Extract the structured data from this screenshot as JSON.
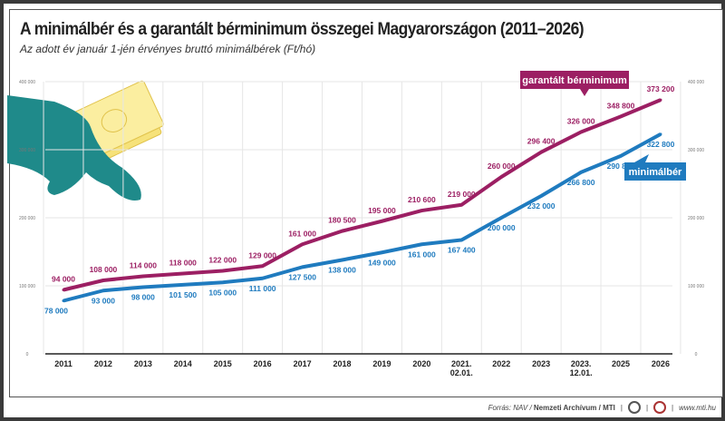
{
  "chart_data": {
    "type": "line",
    "title": "A minimálbér és a garantált bérminimum összegei Magyarországon (2011–2026)",
    "subtitle": "Az adott év január 1-jén érvényes bruttó minimálbérek (Ft/hó)",
    "categories": [
      "2011",
      "2012",
      "2013",
      "2014",
      "2015",
      "2016",
      "2017",
      "2018",
      "2019",
      "2020",
      "2021.\n02.01.",
      "2022",
      "2023",
      "2023.\n12.01.",
      "2025",
      "2026"
    ],
    "ylim": [
      0,
      400000
    ],
    "yticks": [
      "0",
      "100 000",
      "200 000",
      "300 000",
      "400 000"
    ],
    "grid": true,
    "series": [
      {
        "name": "garantált bérminimum",
        "color": "#9c1f63",
        "values": [
          94000,
          108000,
          114000,
          118000,
          122000,
          129000,
          161000,
          180500,
          195000,
          210600,
          219000,
          260000,
          296400,
          326000,
          348800,
          373200
        ],
        "labels": [
          "94 000",
          "108 000",
          "114 000",
          "118 000",
          "122 000",
          "129 000",
          "161 000",
          "180 500",
          "195 000",
          "210 600",
          "219 000",
          "260 000",
          "296 400",
          "326 000",
          "348 800",
          "373 200"
        ]
      },
      {
        "name": "minimálbér",
        "color": "#1f7bbf",
        "values": [
          78000,
          93000,
          98000,
          101500,
          105000,
          111000,
          127500,
          138000,
          149000,
          161000,
          167400,
          200000,
          232000,
          266800,
          290800,
          322800
        ],
        "labels": [
          "78 000",
          "93 000",
          "98 000",
          "101 500",
          "105 000",
          "111 000",
          "127 500",
          "138 000",
          "149 000",
          "161 000",
          "167 400",
          "200 000",
          "232 000",
          "266 800",
          "290 800",
          "322 800"
        ]
      }
    ]
  },
  "footer": {
    "source_prefix": "Forrás: NAV / ",
    "source_bold": "Nemzeti Archívum / MTI",
    "website": "www.mti.hu"
  }
}
